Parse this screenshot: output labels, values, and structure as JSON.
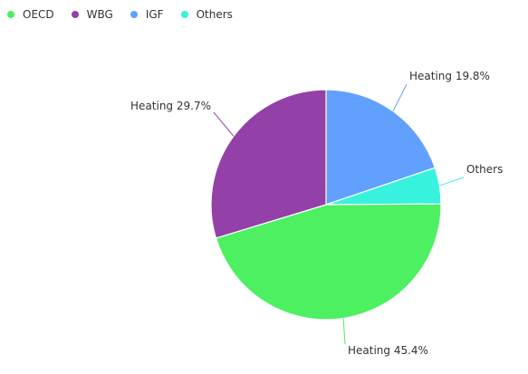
{
  "legend": [
    {
      "label": "OECD",
      "color": "#4cf060"
    },
    {
      "label": "WBG",
      "color": "#9340a8"
    },
    {
      "label": "IGF",
      "color": "#61a0ff"
    },
    {
      "label": "Others",
      "color": "#37f2dc"
    }
  ],
  "chart_data": {
    "type": "pie",
    "title": "",
    "categories": [
      "IGF",
      "Others",
      "OECD",
      "WBG"
    ],
    "values": [
      19.8,
      5.1,
      45.4,
      29.7
    ],
    "colors": [
      "#61a0ff",
      "#37f2dc",
      "#4cf060",
      "#9340a8"
    ],
    "data_labels": [
      "Heating 19.8%",
      "Others",
      "Heating 45.4%",
      "Heating 29.7%"
    ],
    "legend_position": "top-left"
  }
}
